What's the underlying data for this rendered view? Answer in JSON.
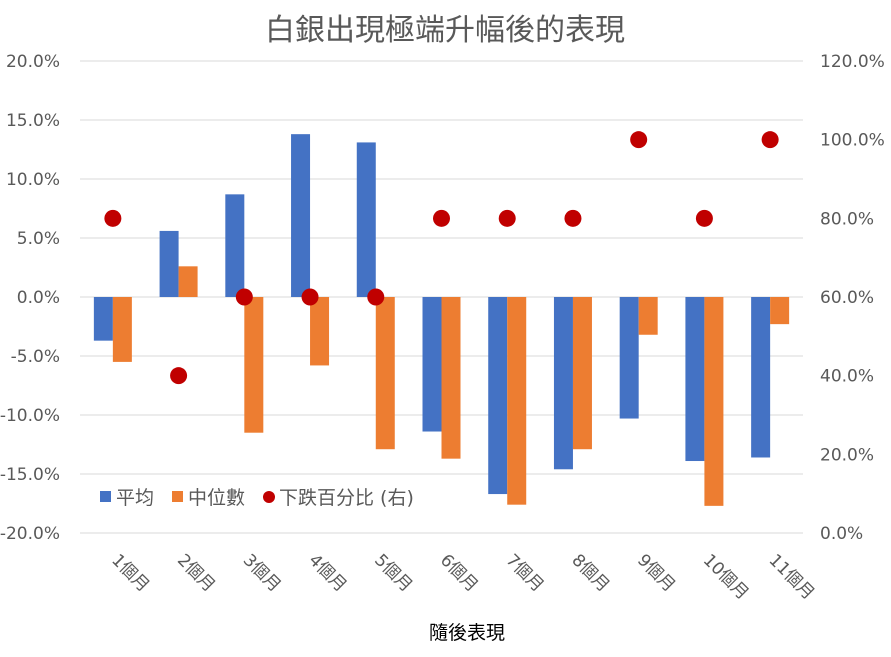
{
  "chart_data": {
    "type": "bar",
    "title": "白銀出現極端升幅後的表現",
    "xlabel": "隨後表現",
    "categories": [
      "1個月",
      "2個月",
      "3個月",
      "4個月",
      "5個月",
      "6個月",
      "7個月",
      "8個月",
      "9個月",
      "10個月",
      "11個月"
    ],
    "series": [
      {
        "name": "平均",
        "axis": "left",
        "kind": "bar",
        "color": "#4472C4",
        "values": [
          -3.7,
          5.6,
          8.7,
          13.8,
          13.1,
          -11.4,
          -16.7,
          -14.6,
          -10.3,
          -13.9,
          -13.6
        ]
      },
      {
        "name": "中位數",
        "axis": "left",
        "kind": "bar",
        "color": "#ED7D31",
        "values": [
          -5.5,
          2.6,
          -11.5,
          -5.8,
          -12.9,
          -13.7,
          -17.6,
          -12.9,
          -3.2,
          -17.7,
          -2.3
        ]
      },
      {
        "name": "下跌百分比 (右)",
        "axis": "right",
        "kind": "scatter",
        "color": "#C00000",
        "values": [
          80,
          40,
          60,
          60,
          60,
          80,
          80,
          80,
          100,
          80,
          100
        ]
      }
    ],
    "y_left": {
      "min": -20,
      "max": 20,
      "step": 5,
      "tick_labels": [
        "20.0%",
        "15.0%",
        "10.0%",
        "5.0%",
        "0.0%",
        "-5.0%",
        "-10.0%",
        "-15.0%",
        "-20.0%"
      ]
    },
    "y_right": {
      "min": 0,
      "max": 120,
      "step": 20,
      "tick_labels": [
        "120.0%",
        "100.0%",
        "80.0%",
        "60.0%",
        "40.0%",
        "20.0%",
        "0.0%"
      ]
    },
    "grid": true,
    "legend_position": "bottom-left"
  }
}
